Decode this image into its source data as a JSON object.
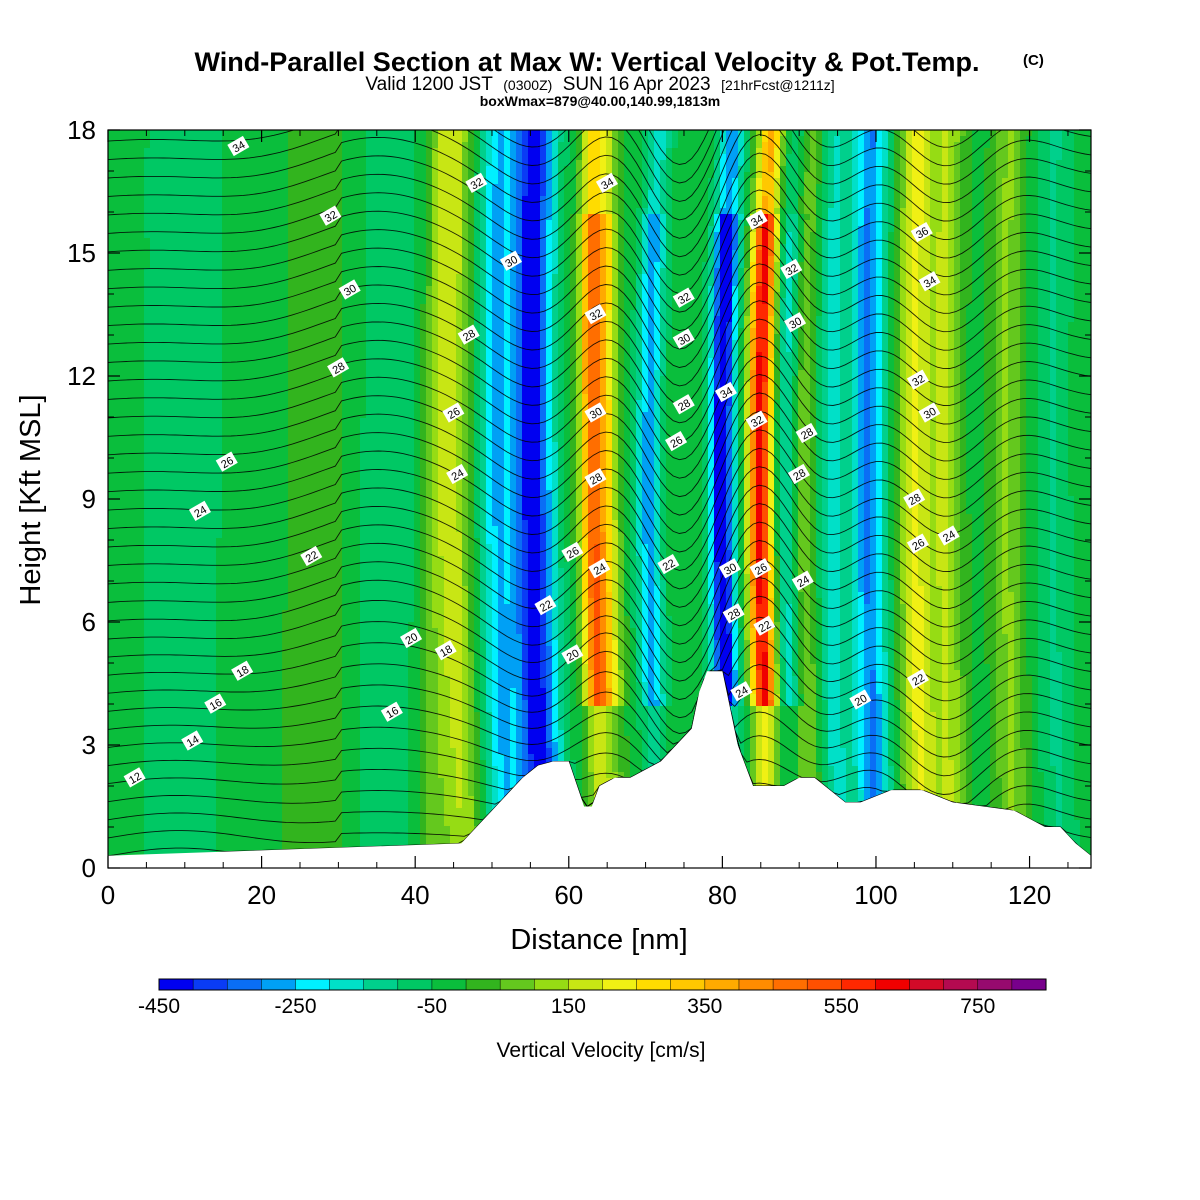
{
  "header": {
    "title": "Wind-Parallel Section at Max W: Vertical Velocity & Pot.Temp.",
    "title_mark": "(C)",
    "valid_prefix": "Valid 1200 JST",
    "valid_zulu": "(0300Z)",
    "valid_date": "SUN 16 Apr 2023",
    "forecast": "[21hrFcst@1211z]",
    "box_info": "boxWmax=879@40.00,140.99,1813m"
  },
  "chart_data": {
    "type": "heatmap",
    "xlabel": "Distance [nm]",
    "ylabel": "Height [Kft MSL]",
    "xlim": [
      0,
      128
    ],
    "ylim": [
      0,
      18
    ],
    "xticks": [
      "0",
      "20",
      "40",
      "60",
      "80",
      "100",
      "120"
    ],
    "yticks": [
      "0",
      "3",
      "6",
      "9",
      "12",
      "15",
      "18"
    ],
    "colorbar": {
      "title": "Vertical Velocity [cm/s]",
      "labels": [
        "-450",
        "-250",
        "-50",
        "150",
        "350",
        "550",
        "750"
      ],
      "range": [
        -450,
        850
      ],
      "step": 50,
      "colors": [
        "#0000f0",
        "#0a3cf5",
        "#0a6ef5",
        "#00a0f5",
        "#00f0ff",
        "#00e0c8",
        "#00d08c",
        "#00c864",
        "#0abe3c",
        "#32b41e",
        "#64c81e",
        "#96dc14",
        "#c8e614",
        "#f0f014",
        "#ffdc00",
        "#ffc800",
        "#ffaa00",
        "#ff8c00",
        "#ff6e00",
        "#ff5000",
        "#ff2800",
        "#f00000",
        "#d20a28",
        "#b40a50",
        "#960a6e",
        "#78008c"
      ]
    },
    "vertical_velocity_cm_s": {
      "background": -25,
      "max": 879,
      "features": [
        {
          "x": 8,
          "value": -40
        },
        {
          "x": 11,
          "value": -30
        },
        {
          "x": 27,
          "value": 60
        },
        {
          "x": 36,
          "value": -60
        },
        {
          "x": 42.5,
          "value": 100
        },
        {
          "x": 46.5,
          "value": 170
        },
        {
          "x": 52,
          "value": -220
        },
        {
          "x": 56,
          "value": -300
        },
        {
          "x": 58,
          "value": -200
        },
        {
          "x": 64.5,
          "value": 480
        },
        {
          "x": 66.5,
          "value": 220
        },
        {
          "x": 71,
          "value": -250
        },
        {
          "x": 80.5,
          "value": -450
        },
        {
          "x": 85.5,
          "value": 650
        },
        {
          "x": 89,
          "value": -200
        },
        {
          "x": 91,
          "value": 150
        },
        {
          "x": 95,
          "value": -150
        },
        {
          "x": 100,
          "value": -280
        },
        {
          "x": 106,
          "value": 230
        },
        {
          "x": 110,
          "value": 170
        },
        {
          "x": 118,
          "value": 130
        },
        {
          "x": 124,
          "value": -80
        }
      ]
    },
    "terrain_kft": {
      "x": [
        0,
        46,
        48,
        50,
        52,
        54,
        56,
        58,
        60,
        62,
        63,
        64,
        66,
        68,
        72,
        74,
        76,
        77,
        78,
        80,
        82,
        84,
        86,
        88,
        90,
        92,
        96,
        98,
        102,
        106,
        110,
        114,
        118,
        120,
        122,
        124,
        126,
        128
      ],
      "height": [
        0.3,
        0.6,
        1.0,
        1.4,
        1.8,
        2.2,
        2.5,
        2.6,
        2.6,
        1.5,
        1.5,
        2.0,
        2.2,
        2.2,
        2.6,
        3.0,
        3.4,
        4.3,
        4.8,
        4.8,
        3.0,
        2.0,
        2.0,
        2.0,
        2.2,
        2.2,
        1.6,
        1.6,
        1.9,
        1.9,
        1.6,
        1.5,
        1.4,
        1.2,
        1.0,
        1.0,
        0.6,
        0.3
      ]
    },
    "pot_temp_contour_labels": [
      {
        "text": "34",
        "x": 17,
        "y": 17.6
      },
      {
        "text": "32",
        "x": 29,
        "y": 15.9
      },
      {
        "text": "30",
        "x": 31.5,
        "y": 14.1
      },
      {
        "text": "28",
        "x": 30,
        "y": 12.2
      },
      {
        "text": "26",
        "x": 15.5,
        "y": 9.9
      },
      {
        "text": "24",
        "x": 12,
        "y": 8.7
      },
      {
        "text": "22",
        "x": 26.5,
        "y": 7.6
      },
      {
        "text": "20",
        "x": 39.5,
        "y": 5.6
      },
      {
        "text": "18",
        "x": 17.5,
        "y": 4.8
      },
      {
        "text": "18",
        "x": 44,
        "y": 5.3
      },
      {
        "text": "16",
        "x": 14,
        "y": 4.0
      },
      {
        "text": "16",
        "x": 37,
        "y": 3.8
      },
      {
        "text": "14",
        "x": 11,
        "y": 3.1
      },
      {
        "text": "12",
        "x": 3.5,
        "y": 2.2
      },
      {
        "text": "32",
        "x": 48,
        "y": 16.7
      },
      {
        "text": "30",
        "x": 52.5,
        "y": 14.8
      },
      {
        "text": "28",
        "x": 47,
        "y": 13.0
      },
      {
        "text": "26",
        "x": 45,
        "y": 11.1
      },
      {
        "text": "24",
        "x": 45.5,
        "y": 9.6
      },
      {
        "text": "22",
        "x": 57,
        "y": 6.4
      },
      {
        "text": "20",
        "x": 60.5,
        "y": 5.2
      },
      {
        "text": "26",
        "x": 60.5,
        "y": 7.7
      },
      {
        "text": "34",
        "x": 65,
        "y": 16.7
      },
      {
        "text": "32",
        "x": 63.5,
        "y": 13.5
      },
      {
        "text": "30",
        "x": 63.5,
        "y": 11.1
      },
      {
        "text": "28",
        "x": 63.5,
        "y": 9.5
      },
      {
        "text": "24",
        "x": 64,
        "y": 7.3
      },
      {
        "text": "32",
        "x": 75,
        "y": 13.9
      },
      {
        "text": "30",
        "x": 75,
        "y": 12.9
      },
      {
        "text": "28",
        "x": 75,
        "y": 11.3
      },
      {
        "text": "26",
        "x": 74,
        "y": 10.4
      },
      {
        "text": "22",
        "x": 73,
        "y": 7.4
      },
      {
        "text": "34",
        "x": 80.5,
        "y": 11.6
      },
      {
        "text": "30",
        "x": 81,
        "y": 7.3
      },
      {
        "text": "28",
        "x": 81.5,
        "y": 6.2
      },
      {
        "text": "24",
        "x": 82.5,
        "y": 4.3
      },
      {
        "text": "34",
        "x": 84.5,
        "y": 15.8
      },
      {
        "text": "32",
        "x": 84.5,
        "y": 10.9
      },
      {
        "text": "26",
        "x": 85,
        "y": 7.3
      },
      {
        "text": "22",
        "x": 85.5,
        "y": 5.9
      },
      {
        "text": "32",
        "x": 89,
        "y": 14.6
      },
      {
        "text": "30",
        "x": 89.5,
        "y": 13.3
      },
      {
        "text": "28",
        "x": 91,
        "y": 10.6
      },
      {
        "text": "28",
        "x": 90,
        "y": 9.6
      },
      {
        "text": "24",
        "x": 90.5,
        "y": 7.0
      },
      {
        "text": "20",
        "x": 98,
        "y": 4.1
      },
      {
        "text": "36",
        "x": 106,
        "y": 15.5
      },
      {
        "text": "34",
        "x": 107,
        "y": 14.3
      },
      {
        "text": "32",
        "x": 105.5,
        "y": 11.9
      },
      {
        "text": "30",
        "x": 107,
        "y": 11.1
      },
      {
        "text": "28",
        "x": 105,
        "y": 9.0
      },
      {
        "text": "26",
        "x": 105.5,
        "y": 7.9
      },
      {
        "text": "24",
        "x": 109.5,
        "y": 8.1
      },
      {
        "text": "22",
        "x": 105.5,
        "y": 4.6
      }
    ]
  }
}
